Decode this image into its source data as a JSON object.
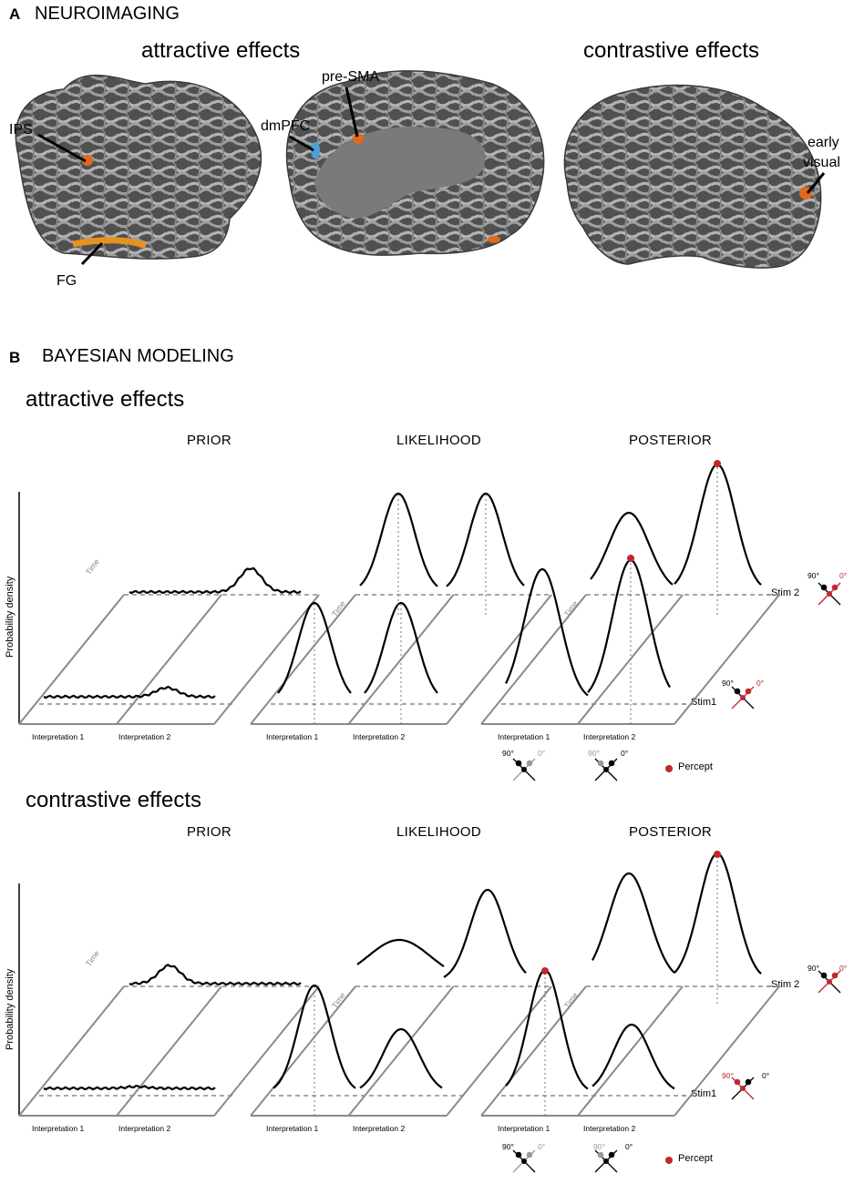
{
  "panelA": {
    "letter": "A",
    "title": "NEUROIMAGING",
    "attractive_title": "attractive effects",
    "contrastive_title": "contrastive effects",
    "labels": {
      "ips": "IPS",
      "fg": "FG",
      "dmpfc": "dmPFC",
      "presma": "pre-SMA",
      "early_visual_1": "early",
      "early_visual_2": "visual"
    },
    "colors": {
      "brain_dark": "#4a4a4a",
      "brain_light": "#a8a8a8",
      "activation_orange": "#e0691f",
      "activation_blue": "#4aa3d8"
    }
  },
  "panelB": {
    "letter": "B",
    "title": "BAYESIAN MODELING",
    "colors": {
      "percept_red": "#c0282d",
      "curve": "#000000",
      "plane": "#8a8a8a"
    },
    "rows": [
      {
        "title": "attractive effects",
        "col_titles": [
          "PRIOR",
          "LIKELIHOOD",
          "POSTERIOR"
        ],
        "ylabel": "Probability density",
        "time": "Time",
        "interp1": "Interpretation 1",
        "interp2": "Interpretation 2",
        "stim1": "Stim1",
        "stim2": "Stim 2",
        "deg90": "90°",
        "deg0": "0°",
        "percept": "Percept"
      },
      {
        "title": "contrastive effects",
        "col_titles": [
          "PRIOR",
          "LIKELIHOOD",
          "POSTERIOR"
        ],
        "ylabel": "Probability density",
        "time": "Time",
        "interp1": "Interpretation 1",
        "interp2": "Interpretation 2",
        "stim1": "Stim1",
        "stim2": "Stim 2",
        "deg90": "90°",
        "deg0": "0°",
        "percept": "Percept"
      }
    ]
  }
}
